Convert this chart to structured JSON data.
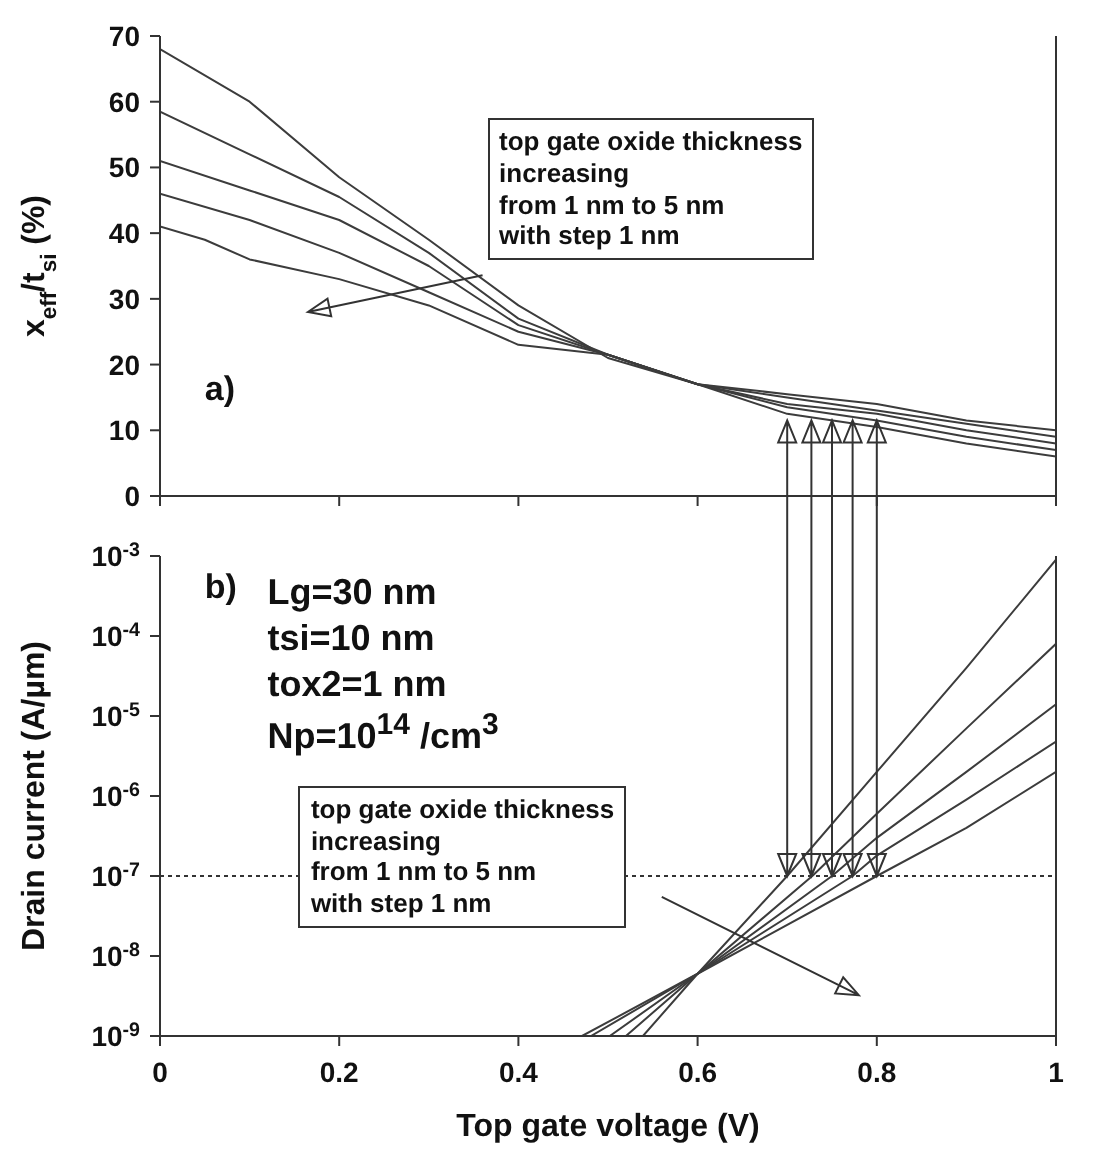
{
  "chart_data": [
    {
      "type": "line",
      "ylabel": "x$_{eff}$/t$_{si}$ (%)",
      "xlim": [
        0,
        1
      ],
      "xticks": [
        0,
        0.2,
        0.4,
        0.6,
        0.8,
        1
      ],
      "ylim": [
        0,
        70
      ],
      "yticks": [
        0,
        10,
        20,
        30,
        40,
        50,
        60,
        70
      ],
      "tick_labels": "y",
      "marker": "none",
      "line_style": "solid",
      "annotations": [
        "a)",
        "top gate oxide thickness\nincreasing\nfrom 1 nm to 5 nm\nwith step 1 nm"
      ],
      "series": [
        {
          "color": "#3c3c3c",
          "x": [
            0,
            0.1,
            0.2,
            0.3,
            0.4,
            0.5,
            0.6,
            0.7,
            0.8,
            0.9,
            1
          ],
          "values": [
            68,
            60,
            48.5,
            39,
            29,
            21,
            17,
            12.5,
            10.5,
            8,
            6
          ]
        },
        {
          "color": "#3c3c3c",
          "x": [
            0,
            0.1,
            0.2,
            0.3,
            0.4,
            0.5,
            0.6,
            0.7,
            0.8,
            0.9,
            1
          ],
          "values": [
            58.5,
            52,
            45.5,
            37,
            27,
            21.5,
            17,
            13.5,
            11.5,
            9,
            7
          ]
        },
        {
          "color": "#3c3c3c",
          "x": [
            0,
            0.1,
            0.2,
            0.3,
            0.4,
            0.5,
            0.6,
            0.7,
            0.8,
            0.9,
            1
          ],
          "values": [
            51,
            46.5,
            42,
            35,
            26,
            21.5,
            17,
            14,
            12.5,
            10,
            8
          ]
        },
        {
          "color": "#3c3c3c",
          "x": [
            0,
            0.1,
            0.2,
            0.3,
            0.4,
            0.5,
            0.6,
            0.7,
            0.8,
            0.9,
            1
          ],
          "values": [
            46,
            42,
            37,
            31,
            25,
            21.5,
            17,
            15,
            13,
            11,
            9
          ]
        },
        {
          "color": "#3c3c3c",
          "x": [
            0,
            0.05,
            0.1,
            0.2,
            0.3,
            0.4,
            0.5,
            0.6,
            0.7,
            0.8,
            0.9,
            1
          ],
          "values": [
            41,
            39,
            36,
            33,
            29,
            23,
            21.5,
            17,
            15.5,
            14,
            11.5,
            10
          ]
        }
      ]
    },
    {
      "type": "line",
      "log": true,
      "xlabel": "Top gate voltage (V)",
      "ylabel": "Drain current (A/µm)",
      "xlim": [
        0,
        1
      ],
      "xticks": [
        0,
        0.2,
        0.4,
        0.6,
        0.8,
        1
      ],
      "ylim": [
        1e-09,
        0.001
      ],
      "yticks": [
        {
          "value": 1e-09,
          "label": "10$^{-9}$"
        },
        {
          "value": 1e-08,
          "label": "10$^{-8}$"
        },
        {
          "value": 1e-07,
          "label": "10$^{-7}$"
        },
        {
          "value": 1e-06,
          "label": "10$^{-6}$"
        },
        {
          "value": 1e-05,
          "label": "10$^{-5}$"
        },
        {
          "value": 0.0001,
          "label": "10$^{-4}$"
        },
        {
          "value": 0.001,
          "label": "10$^{-3}$"
        }
      ],
      "marker": "none",
      "line_style": "solid",
      "ref_lines": [
        {
          "axis": "y",
          "value": 1e-07,
          "line_style": "dotted",
          "color": "#333333"
        }
      ],
      "annotations": [
        "b)",
        "Lg=30 nm",
        "tsi=10 nm",
        "tox2=1 nm",
        "Np=10$^{14}$ /cm$^{3}$",
        "top gate oxide thickness\nincreasing\nfrom 1 nm to 5 nm\nwith step 1 nm"
      ],
      "series": [
        {
          "color": "#3c3c3c",
          "x": [
            0.539,
            0.6,
            0.7,
            0.8,
            0.9,
            1
          ],
          "values": [
            1e-09,
            6e-09,
            1e-07,
            2e-06,
            4e-05,
            0.0009
          ]
        },
        {
          "color": "#3c3c3c",
          "x": [
            0.52,
            0.6,
            0.728,
            0.8,
            0.9,
            1
          ],
          "values": [
            1e-09,
            6e-09,
            1e-07,
            6e-07,
            7e-06,
            8e-05
          ]
        },
        {
          "color": "#3c3c3c",
          "x": [
            0.502,
            0.6,
            0.75,
            0.8,
            0.9,
            1
          ],
          "values": [
            1e-09,
            6e-09,
            1e-07,
            3e-07,
            2e-06,
            1.4e-05
          ]
        },
        {
          "color": "#3c3c3c",
          "x": [
            0.481,
            0.6,
            0.773,
            0.8,
            0.9,
            1
          ],
          "values": [
            1e-09,
            6e-09,
            1e-07,
            1.8e-07,
            9e-07,
            4.8e-06
          ]
        },
        {
          "color": "#3c3c3c",
          "x": [
            0.471,
            0.6,
            0.8,
            0.9,
            1
          ],
          "values": [
            1e-09,
            6e-09,
            1e-07,
            4e-07,
            2e-06
          ]
        }
      ]
    }
  ]
}
